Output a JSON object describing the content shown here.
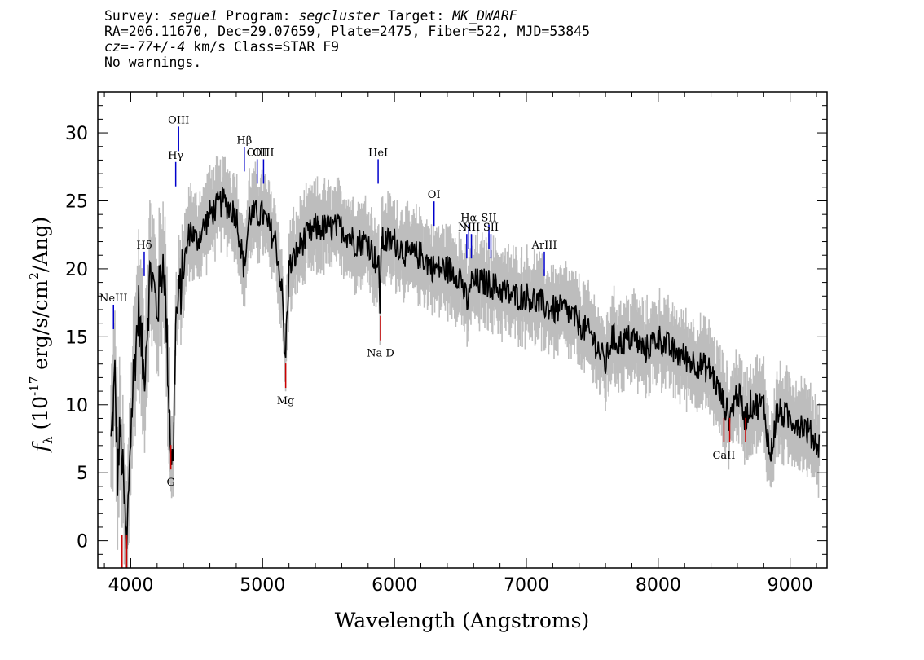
{
  "header": {
    "line1_a": "Survey: ",
    "survey": "segue1",
    "line1_b": " Program: ",
    "program": "segcluster",
    "line1_c": " Target: ",
    "target": "MK_DWARF",
    "line2": "RA=206.11670, Dec=29.07659, Plate=2475, Fiber=522, MJD=53845",
    "line3_a": "cz=",
    "cz": "-77+/-4",
    "line3_b": " km/s Class=STAR F9",
    "line4": "No warnings."
  },
  "colors": {
    "flux": "#000000",
    "error_band": "#bdbdbd",
    "emission_line": "#0000cc",
    "absorption_line": "#cc0000"
  },
  "chart_data": {
    "type": "line",
    "xlabel": "Wavelength (Angstroms)",
    "ylabel_parts": {
      "f": "f",
      "sub": "λ",
      "open": " (10",
      "exp1": "-17",
      "mid": " erg/s/cm",
      "exp2": "2",
      "close": "/Ang)"
    },
    "xlim": [
      3750,
      9280
    ],
    "ylim": [
      -2,
      33
    ],
    "xticks": [
      4000,
      5000,
      6000,
      7000,
      8000,
      9000
    ],
    "yticks": [
      0,
      5,
      10,
      15,
      20,
      25,
      30
    ],
    "grid": false,
    "flux_anchors": [
      [
        3850,
        7
      ],
      [
        3880,
        12
      ],
      [
        3900,
        5
      ],
      [
        3920,
        8
      ],
      [
        3950,
        3
      ],
      [
        3970,
        -1
      ],
      [
        3990,
        6
      ],
      [
        4020,
        12
      ],
      [
        4060,
        17
      ],
      [
        4100,
        12
      ],
      [
        4150,
        20
      ],
      [
        4200,
        17
      ],
      [
        4250,
        21
      ],
      [
        4300,
        8
      ],
      [
        4320,
        5
      ],
      [
        4340,
        16
      ],
      [
        4400,
        20
      ],
      [
        4450,
        23
      ],
      [
        4500,
        22
      ],
      [
        4600,
        24
      ],
      [
        4700,
        25
      ],
      [
        4800,
        24
      ],
      [
        4860,
        20
      ],
      [
        4900,
        24
      ],
      [
        5000,
        24
      ],
      [
        5100,
        22
      ],
      [
        5150,
        18
      ],
      [
        5170,
        13
      ],
      [
        5200,
        20
      ],
      [
        5300,
        22
      ],
      [
        5400,
        23
      ],
      [
        5500,
        23
      ],
      [
        5600,
        23
      ],
      [
        5700,
        22
      ],
      [
        5800,
        22
      ],
      [
        5880,
        20
      ],
      [
        5890,
        17.5
      ],
      [
        5900,
        22
      ],
      [
        6000,
        22
      ],
      [
        6100,
        21
      ],
      [
        6200,
        21
      ],
      [
        6300,
        20
      ],
      [
        6400,
        20
      ],
      [
        6500,
        19.5
      ],
      [
        6560,
        17
      ],
      [
        6570,
        19
      ],
      [
        6600,
        19
      ],
      [
        6700,
        19
      ],
      [
        6800,
        18.5
      ],
      [
        6900,
        18
      ],
      [
        7000,
        18
      ],
      [
        7100,
        17.5
      ],
      [
        7200,
        17
      ],
      [
        7300,
        17
      ],
      [
        7400,
        16
      ],
      [
        7500,
        15
      ],
      [
        7600,
        13
      ],
      [
        7650,
        15
      ],
      [
        7700,
        14.5
      ],
      [
        7800,
        15
      ],
      [
        7900,
        14
      ],
      [
        8000,
        15
      ],
      [
        8100,
        14
      ],
      [
        8200,
        13.5
      ],
      [
        8300,
        13
      ],
      [
        8400,
        12.5
      ],
      [
        8500,
        10
      ],
      [
        8540,
        9
      ],
      [
        8600,
        11
      ],
      [
        8660,
        9
      ],
      [
        8700,
        10
      ],
      [
        8800,
        10
      ],
      [
        8850,
        6
      ],
      [
        8900,
        9.5
      ],
      [
        9000,
        9
      ],
      [
        9100,
        8.5
      ],
      [
        9220,
        7
      ]
    ],
    "emission_lines": [
      {
        "label": "NeIII",
        "x": 3869,
        "y": 17.6
      },
      {
        "label": "Hδ",
        "x": 4102,
        "y": 21.5
      },
      {
        "label": "Hγ",
        "x": 4341,
        "y": 28.1
      },
      {
        "label": "OIII",
        "x": 4363,
        "y": 30.7
      },
      {
        "label": "Hβ",
        "x": 4861,
        "y": 29.2
      },
      {
        "label": "OIII",
        "x": 4959,
        "y": 28.3
      },
      {
        "label": "OIII",
        "x": 5007,
        "y": 28.3
      },
      {
        "label": "HeI",
        "x": 5876,
        "y": 28.3
      },
      {
        "label": "OI",
        "x": 6300,
        "y": 25.2
      },
      {
        "label": "NII",
        "x": 6548,
        "y": 22.8
      },
      {
        "label": "Hα",
        "x": 6563,
        "y": 23.5
      },
      {
        "label": "NII",
        "x": 6583,
        "y": 22.8
      },
      {
        "label": "SII",
        "x": 6716,
        "y": 23.5
      },
      {
        "label": "SII",
        "x": 6731,
        "y": 22.8
      },
      {
        "label": "ArIII",
        "x": 7136,
        "y": 21.5
      }
    ],
    "absorption_lines": [
      {
        "label": "G",
        "x": 4304,
        "y": 5
      },
      {
        "label": "Mg",
        "x": 5175,
        "y": 11
      },
      {
        "label": "Na D",
        "x": 5894,
        "y": 14.5
      },
      {
        "label": "CaII",
        "x": 8498,
        "y": 7
      },
      {
        "label": "CaII",
        "x": 8542,
        "y": 7
      },
      {
        "label": "CaII",
        "x": 8662,
        "y": 7
      },
      {
        "label": "CaII",
        "x": 3934,
        "y": -2
      },
      {
        "label": "CaII",
        "x": 3969,
        "y": -2
      }
    ]
  }
}
